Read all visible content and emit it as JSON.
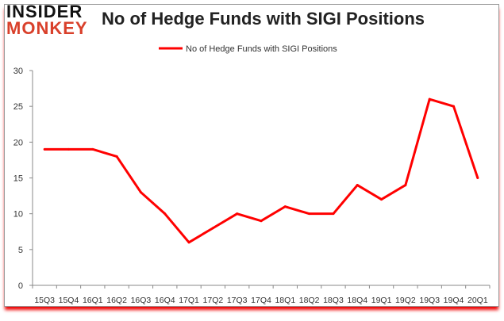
{
  "logo": {
    "line1": "INSIDER",
    "line2": "MONKEY"
  },
  "chart_data": {
    "type": "line",
    "title": "No of Hedge Funds with SIGI Positions",
    "categories": [
      "15Q3",
      "15Q4",
      "16Q1",
      "16Q2",
      "16Q3",
      "16Q4",
      "17Q1",
      "17Q2",
      "17Q3",
      "17Q4",
      "18Q1",
      "18Q2",
      "18Q3",
      "18Q4",
      "19Q1",
      "19Q2",
      "19Q3",
      "19Q4",
      "20Q1"
    ],
    "series": [
      {
        "name": "No of Hedge Funds with SIGI Positions",
        "values": [
          19,
          19,
          19,
          18,
          13,
          10,
          6,
          8,
          10,
          9,
          11,
          10,
          10,
          14,
          12,
          14,
          26,
          25,
          15
        ],
        "color": "#ff0000"
      }
    ],
    "ylim": [
      0,
      30
    ],
    "yticks": [
      0,
      5,
      10,
      15,
      20,
      25,
      30
    ],
    "grid": false,
    "legend": "top"
  }
}
